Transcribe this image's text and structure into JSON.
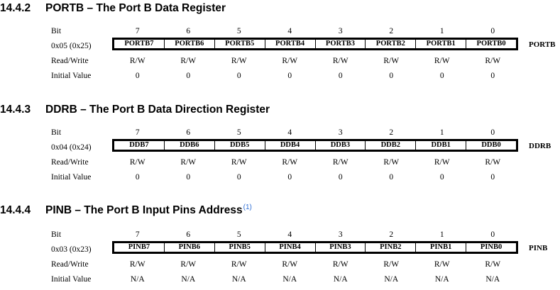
{
  "row_labels": {
    "bit": "Bit",
    "rw": "Read/Write",
    "init": "Initial Value"
  },
  "bit_numbers": [
    "7",
    "6",
    "5",
    "4",
    "3",
    "2",
    "1",
    "0"
  ],
  "sections": [
    {
      "number": "14.4.2",
      "title": "PORTB – The Port B Data Register",
      "footnote": "",
      "address": "0x05 (0x25)",
      "name": "PORTB",
      "bits": [
        "PORTB7",
        "PORTB6",
        "PORTB5",
        "PORTB4",
        "PORTB3",
        "PORTB2",
        "PORTB1",
        "PORTB0"
      ],
      "rw": [
        "R/W",
        "R/W",
        "R/W",
        "R/W",
        "R/W",
        "R/W",
        "R/W",
        "R/W"
      ],
      "initial": [
        "0",
        "0",
        "0",
        "0",
        "0",
        "0",
        "0",
        "0"
      ]
    },
    {
      "number": "14.4.3",
      "title": "DDRB – The Port B Data Direction Register",
      "footnote": "",
      "address": "0x04 (0x24)",
      "name": "DDRB",
      "bits": [
        "DDB7",
        "DDB6",
        "DDB5",
        "DDB4",
        "DDB3",
        "DDB2",
        "DDB1",
        "DDB0"
      ],
      "rw": [
        "R/W",
        "R/W",
        "R/W",
        "R/W",
        "R/W",
        "R/W",
        "R/W",
        "R/W"
      ],
      "initial": [
        "0",
        "0",
        "0",
        "0",
        "0",
        "0",
        "0",
        "0"
      ]
    },
    {
      "number": "14.4.4",
      "title": "PINB – The Port B Input Pins Address",
      "footnote": "(1)",
      "address": "0x03 (0x23)",
      "name": "PINB",
      "bits": [
        "PINB7",
        "PINB6",
        "PINB5",
        "PINB4",
        "PINB3",
        "PINB2",
        "PINB1",
        "PINB0"
      ],
      "rw": [
        "R/W",
        "R/W",
        "R/W",
        "R/W",
        "R/W",
        "R/W",
        "R/W",
        "R/W"
      ],
      "initial": [
        "N/A",
        "N/A",
        "N/A",
        "N/A",
        "N/A",
        "N/A",
        "N/A",
        "N/A"
      ]
    }
  ]
}
